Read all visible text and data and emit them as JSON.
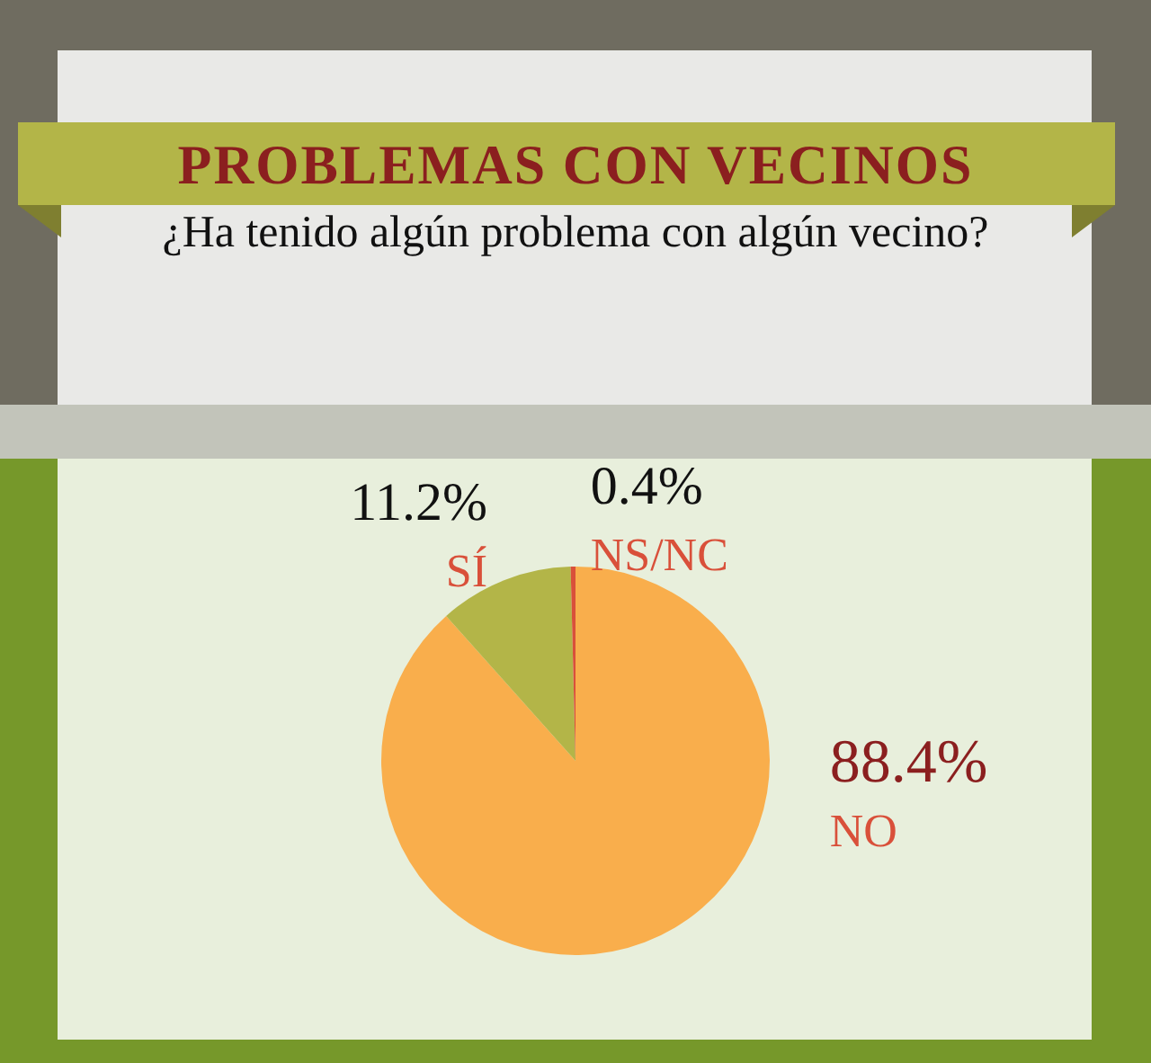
{
  "chart_data": {
    "type": "pie",
    "title": "PROBLEMAS CON VECINOS",
    "subtitle": "¿Ha tenido algún problema con algún vecino?",
    "categories": [
      "NO",
      "SÍ",
      "NS/NC"
    ],
    "values": [
      88.4,
      11.2,
      0.4
    ],
    "colors": [
      "#f9ae4c",
      "#b3b548",
      "#d9503a"
    ],
    "value_labels": [
      "88.4%",
      "11.2%",
      "0.4%"
    ],
    "legend": false
  }
}
